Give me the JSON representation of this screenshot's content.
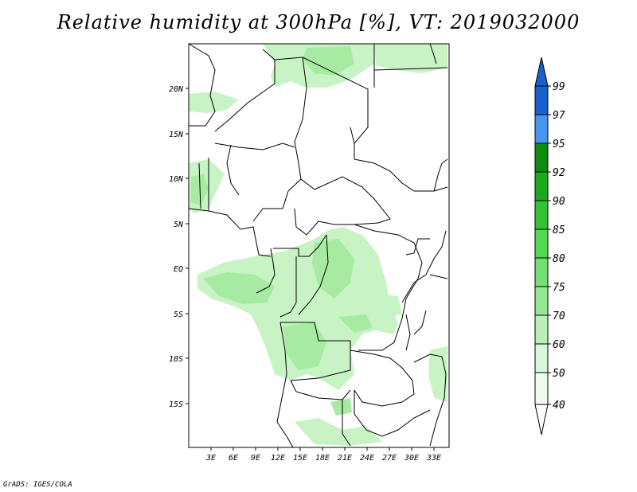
{
  "title": "Relative humidity at 300hPa [%], VT: 2019032000",
  "credit": "GrADS: IGES/COLA",
  "lat_ticks": [
    "20N",
    "15N",
    "10N",
    "5N",
    "EQ",
    "5S",
    "10S",
    "15S"
  ],
  "lon_ticks": [
    "3E",
    "6E",
    "9E",
    "12E",
    "15E",
    "18E",
    "21E",
    "24E",
    "27E",
    "30E",
    "33E"
  ],
  "colorbar": {
    "levels": [
      "99",
      "97",
      "95",
      "92",
      "90",
      "85",
      "80",
      "75",
      "70",
      "60",
      "50",
      "40"
    ],
    "colors": [
      "#1a5fd0",
      "#2b79e0",
      "#4797ee",
      "#0f8c0f",
      "#1ea81e",
      "#34c234",
      "#52d852",
      "#72e072",
      "#96e896",
      "#b8f0b8",
      "#d8f6d8",
      "#f0fbf0"
    ]
  },
  "map": {
    "lat_range": [
      -19.5,
      24.5
    ],
    "lon_range": [
      0,
      35
    ],
    "field_colors": {
      "light": "#c8f3c4",
      "medium": "#a7eba2",
      "strong": "#8fe189"
    }
  }
}
